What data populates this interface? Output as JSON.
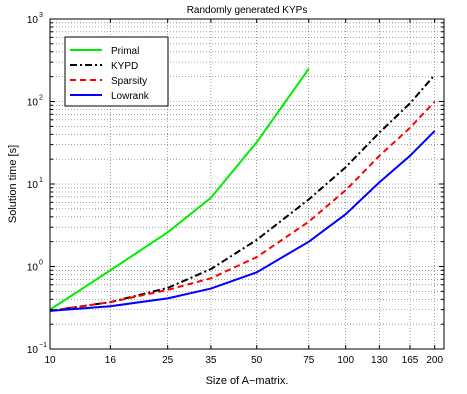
{
  "chart_data": {
    "type": "line",
    "title": "Randomly generated KYPs",
    "xlabel": "Size of A−matrix.",
    "ylabel": "Solution time [s]",
    "x_scale": "log",
    "y_scale": "log",
    "xlim": [
      10,
      215
    ],
    "ylim": [
      0.1,
      1000
    ],
    "x_ticks": [
      10,
      16,
      25,
      35,
      50,
      75,
      100,
      130,
      165,
      200
    ],
    "x_tick_labels": [
      "10",
      "16",
      "25",
      "35",
      "50",
      "75",
      "100",
      "130",
      "165",
      "200"
    ],
    "y_ticks": [
      0.1,
      1,
      10,
      100,
      1000
    ],
    "y_tick_labels": [
      {
        "base": "10",
        "exp": "−1"
      },
      {
        "base": "10",
        "exp": "0"
      },
      {
        "base": "10",
        "exp": "1"
      },
      {
        "base": "10",
        "exp": "2"
      },
      {
        "base": "10",
        "exp": "3"
      }
    ],
    "grid": true,
    "legend_position": "top-left",
    "series": [
      {
        "name": "Primal",
        "color": "#00ee00",
        "dash": "solid",
        "x": [
          10,
          16,
          25,
          35,
          50,
          75
        ],
        "y": [
          0.3,
          0.9,
          2.6,
          6.8,
          32,
          250
        ]
      },
      {
        "name": "KYPD",
        "color": "#000000",
        "dash": "dashdot",
        "x": [
          10,
          16,
          25,
          35,
          50,
          75,
          100,
          130,
          165,
          200
        ],
        "y": [
          0.29,
          0.37,
          0.55,
          0.93,
          2.1,
          6.5,
          16,
          42,
          95,
          210
        ]
      },
      {
        "name": "Sparsity",
        "color": "#ff0000",
        "dash": "dashed",
        "x": [
          10,
          16,
          25,
          35,
          50,
          75,
          100,
          130,
          165,
          200
        ],
        "y": [
          0.29,
          0.37,
          0.52,
          0.72,
          1.3,
          3.5,
          8.4,
          22,
          48,
          100
        ]
      },
      {
        "name": "Lowrank",
        "color": "#0000ff",
        "dash": "solid",
        "x": [
          10,
          16,
          25,
          35,
          50,
          75,
          100,
          130,
          165,
          200
        ],
        "y": [
          0.29,
          0.33,
          0.41,
          0.54,
          0.85,
          2.0,
          4.3,
          10.5,
          22,
          44
        ]
      }
    ]
  }
}
